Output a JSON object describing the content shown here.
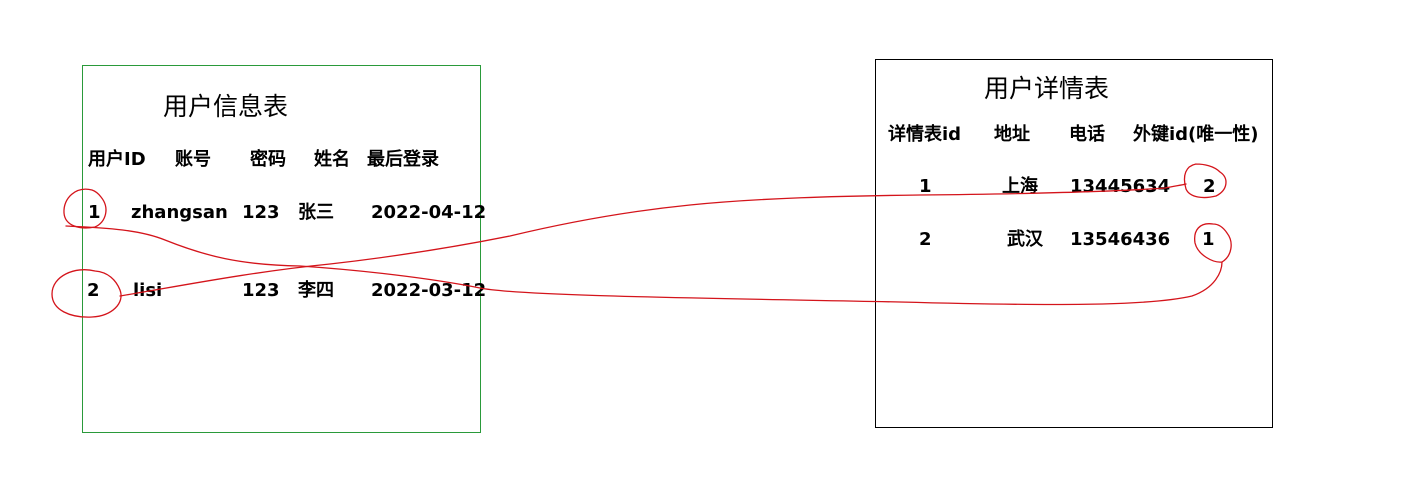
{
  "user_info_table": {
    "title": "用户信息表",
    "headers": [
      "用户ID",
      "账号",
      "密码",
      "姓名",
      "最后登录"
    ],
    "rows": [
      [
        "1",
        "zhangsan",
        "123",
        "张三",
        "2022-04-12"
      ],
      [
        "2",
        "lisi",
        "123",
        "李四",
        "2022-03-12"
      ]
    ]
  },
  "user_detail_table": {
    "title": "用户详情表",
    "headers": [
      "详情表id",
      "地址",
      "电话",
      "外键id(唯一性)"
    ],
    "rows": [
      [
        "1",
        "上海",
        "13445634",
        "2"
      ],
      [
        "2",
        "武汉",
        "13546436",
        "1"
      ]
    ]
  },
  "annotation_color": "#d4141b",
  "user_info_border_color": "#2a9a3a",
  "user_detail_border_color": "#000000"
}
